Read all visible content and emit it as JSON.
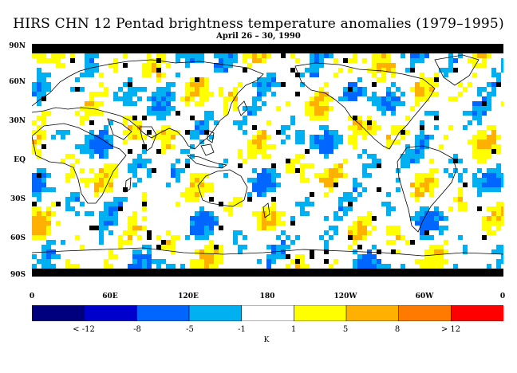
{
  "title": "HIRS CHN 12 Pentad brightness temperature anomalies (1979–1995)",
  "subtitle": "April 26 – 30, 1990",
  "map": {
    "latitude_labels": [
      "90N",
      "60N",
      "30N",
      "EQ",
      "30S",
      "60S",
      "90S"
    ],
    "longitude_labels": [
      "0",
      "60E",
      "120E",
      "180",
      "120W",
      "60W",
      "0"
    ],
    "missing_data_color": "#000000"
  },
  "colorbar": {
    "colors": [
      "#00007f",
      "#0000cc",
      "#0066ff",
      "#00b0f0",
      "#ffffff",
      "#ffff00",
      "#ffb000",
      "#ff7a00",
      "#ff0000"
    ],
    "tick_labels": [
      "< -12",
      "-8",
      "-5",
      "-1",
      "1",
      "5",
      "8",
      "> 12"
    ],
    "units": "K"
  }
}
